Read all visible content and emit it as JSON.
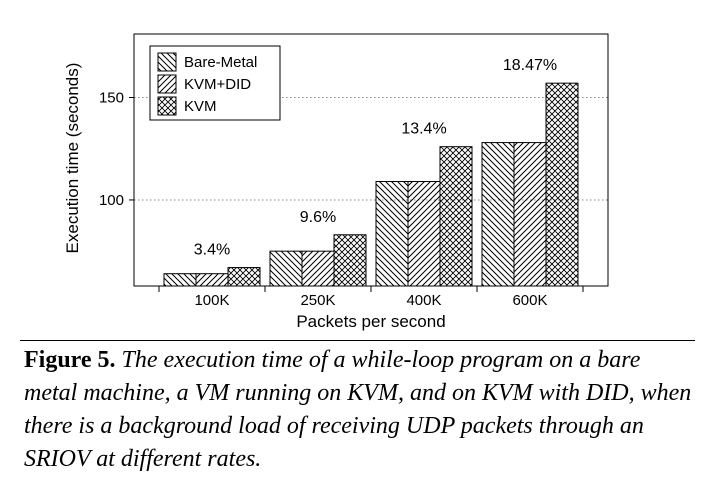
{
  "chart_data": {
    "type": "bar",
    "categories": [
      "100K",
      "250K",
      "400K",
      "600K"
    ],
    "series": [
      {
        "name": "Bare-Metal",
        "pattern": "diag-back",
        "values": [
          64,
          75,
          109,
          128
        ]
      },
      {
        "name": "KVM+DID",
        "pattern": "diag-fwd",
        "values": [
          64,
          75,
          109,
          128
        ]
      },
      {
        "name": "KVM",
        "pattern": "crosshatch",
        "values": [
          67,
          83,
          126,
          157
        ]
      }
    ],
    "annotations": [
      "3.4%",
      "9.6%",
      "13.4%",
      "18.47%"
    ],
    "xlabel": "Packets per second",
    "ylabel": "Execution time (seconds)",
    "ylim": [
      58,
      181
    ],
    "yticks": [
      100,
      150
    ],
    "grid": "horizontal dotted at y ticks",
    "legend_position": "top-left",
    "colors": {
      "bar_fill": "#ffffff",
      "hatch": "#000000",
      "grid": "#888888"
    }
  },
  "caption": {
    "label": "Figure 5.",
    "text": "The execution time of a while-loop program on a bare metal machine, a VM running on KVM, and on KVM with DID, when there is a background load of receiving UDP packets through an SRIOV at different rates."
  }
}
